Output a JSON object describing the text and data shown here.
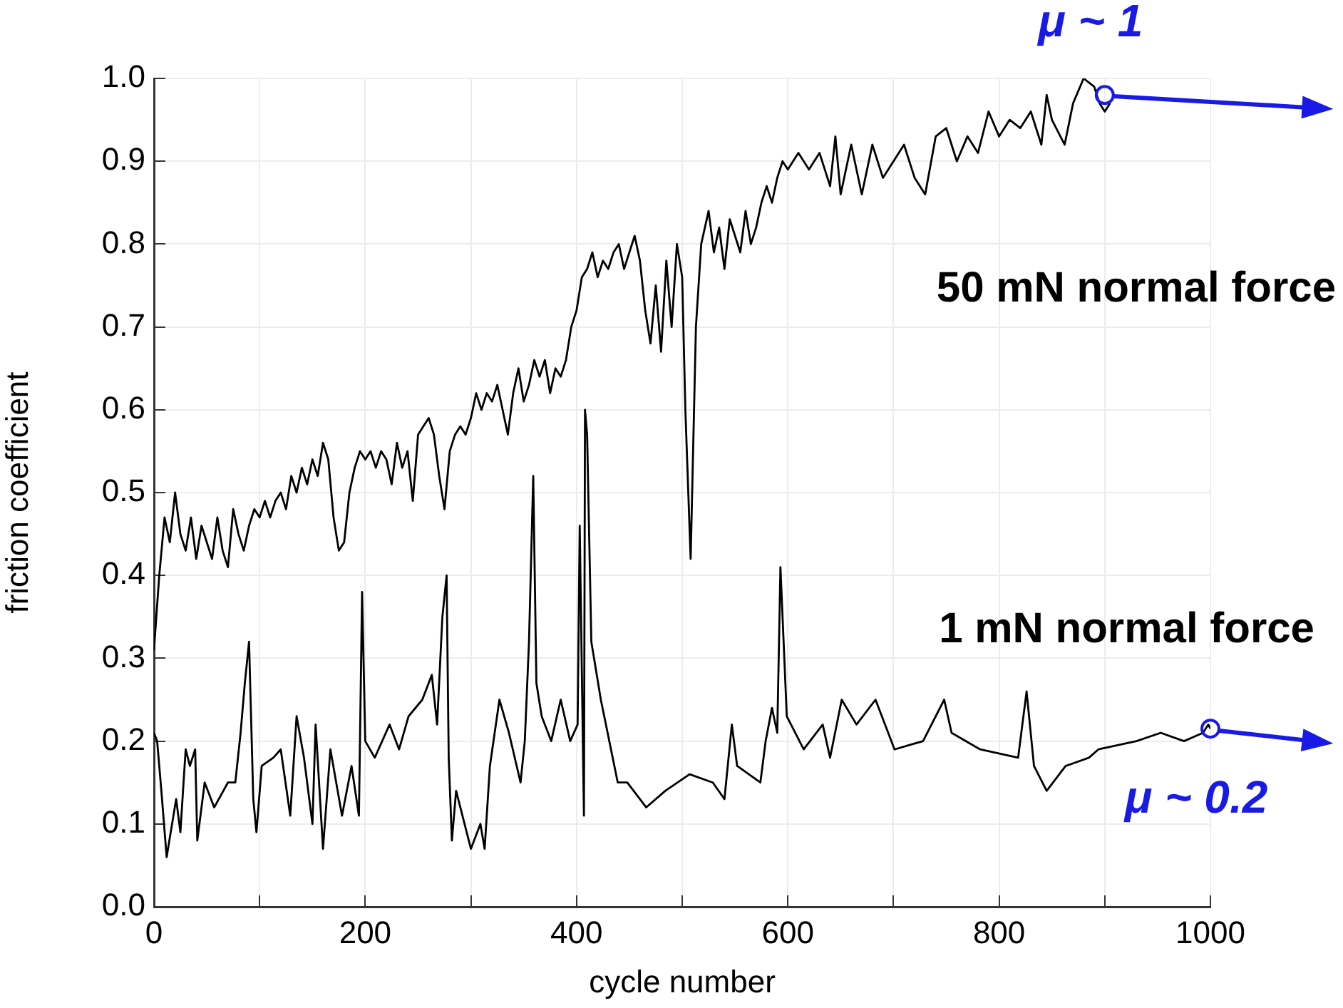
{
  "chart_data": {
    "type": "line",
    "xlabel": "cycle number",
    "ylabel": "friction coefficient",
    "xlim": [
      0,
      1000
    ],
    "ylim": [
      0,
      1
    ],
    "xticks": [
      0,
      {
        "value": 100,
        "label": null
      },
      200,
      {
        "value": 300,
        "label": null
      },
      400,
      {
        "value": 500,
        "label": null
      },
      600,
      {
        "value": 700,
        "label": null
      },
      800,
      {
        "value": 900,
        "label": null
      },
      1000
    ],
    "yticks": [
      {
        "value": 0,
        "label": "0.0"
      },
      0.1,
      0.2,
      0.3,
      0.4,
      0.5,
      0.6,
      0.7,
      0.8,
      0.9,
      {
        "value": 1,
        "label": "1.0"
      }
    ],
    "grid": true,
    "series": [
      {
        "name": "50 mN normal force",
        "color": "#000000",
        "x": [
          0,
          5,
          10,
          15,
          20,
          25,
          30,
          35,
          40,
          45,
          50,
          55,
          60,
          65,
          70,
          75,
          80,
          85,
          90,
          95,
          100,
          105,
          110,
          115,
          120,
          125,
          130,
          135,
          140,
          145,
          150,
          155,
          160,
          165,
          170,
          175,
          180,
          185,
          190,
          195,
          200,
          205,
          210,
          215,
          220,
          225,
          230,
          235,
          240,
          245,
          250,
          255,
          260,
          265,
          270,
          275,
          280,
          285,
          290,
          295,
          300,
          305,
          310,
          315,
          320,
          325,
          330,
          335,
          340,
          345,
          350,
          355,
          360,
          365,
          370,
          375,
          380,
          385,
          390,
          395,
          400,
          405,
          410,
          415,
          420,
          425,
          430,
          435,
          440,
          445,
          450,
          455,
          460,
          465,
          470,
          475,
          480,
          485,
          490,
          495,
          500,
          503,
          508,
          513,
          518,
          525,
          530,
          535,
          540,
          545,
          550,
          555,
          560,
          565,
          570,
          575,
          580,
          585,
          590,
          595,
          600,
          610,
          620,
          630,
          640,
          645,
          650,
          660,
          670,
          680,
          690,
          700,
          710,
          720,
          730,
          740,
          750,
          760,
          770,
          780,
          790,
          800,
          810,
          820,
          830,
          840,
          845,
          850,
          862,
          870,
          880,
          890,
          895,
          900,
          905
        ],
        "values": [
          0.31,
          0.4,
          0.47,
          0.44,
          0.5,
          0.45,
          0.43,
          0.47,
          0.42,
          0.46,
          0.44,
          0.42,
          0.47,
          0.43,
          0.41,
          0.48,
          0.45,
          0.43,
          0.46,
          0.48,
          0.47,
          0.49,
          0.47,
          0.49,
          0.5,
          0.48,
          0.52,
          0.5,
          0.53,
          0.51,
          0.54,
          0.52,
          0.56,
          0.54,
          0.47,
          0.43,
          0.44,
          0.5,
          0.53,
          0.55,
          0.54,
          0.55,
          0.53,
          0.55,
          0.54,
          0.51,
          0.56,
          0.53,
          0.55,
          0.49,
          0.57,
          0.58,
          0.59,
          0.57,
          0.52,
          0.48,
          0.55,
          0.57,
          0.58,
          0.57,
          0.59,
          0.62,
          0.6,
          0.62,
          0.61,
          0.63,
          0.6,
          0.57,
          0.62,
          0.65,
          0.61,
          0.63,
          0.66,
          0.64,
          0.66,
          0.62,
          0.65,
          0.64,
          0.66,
          0.7,
          0.72,
          0.76,
          0.77,
          0.79,
          0.76,
          0.78,
          0.77,
          0.79,
          0.8,
          0.77,
          0.79,
          0.81,
          0.78,
          0.72,
          0.68,
          0.75,
          0.67,
          0.78,
          0.7,
          0.8,
          0.76,
          0.6,
          0.42,
          0.7,
          0.8,
          0.84,
          0.79,
          0.82,
          0.77,
          0.83,
          0.81,
          0.79,
          0.84,
          0.8,
          0.82,
          0.85,
          0.87,
          0.85,
          0.88,
          0.9,
          0.89,
          0.91,
          0.89,
          0.91,
          0.87,
          0.93,
          0.86,
          0.92,
          0.86,
          0.92,
          0.88,
          0.9,
          0.92,
          0.88,
          0.86,
          0.93,
          0.94,
          0.9,
          0.93,
          0.91,
          0.96,
          0.93,
          0.95,
          0.94,
          0.96,
          0.92,
          0.98,
          0.95,
          0.92,
          0.97,
          1.0,
          0.99,
          0.97,
          0.96,
          0.97
        ]
      },
      {
        "name": "1 mN normal force",
        "color": "#000000",
        "x": [
          0,
          3,
          7,
          12,
          21,
          25,
          30,
          34,
          39,
          41,
          48,
          57,
          70,
          77,
          82,
          86,
          90,
          94,
          97,
          102,
          113,
          120,
          129,
          135,
          142,
          150,
          153,
          160,
          167,
          178,
          187,
          194,
          197,
          200,
          209,
          223,
          232,
          241,
          254,
          263,
          268,
          273,
          277,
          279,
          282,
          286,
          300,
          309,
          313,
          318,
          327,
          336,
          347,
          351,
          355,
          359,
          362,
          367,
          376,
          385,
          394,
          401,
          403,
          407,
          408,
          410,
          414,
          423,
          439,
          448,
          466,
          484,
          507,
          529,
          540,
          547,
          552,
          574,
          579,
          585,
          590,
          593,
          599,
          615,
          633,
          640,
          651,
          665,
          683,
          701,
          728,
          748,
          755,
          782,
          818,
          826,
          833,
          845,
          863,
          885,
          894,
          930,
          953,
          975,
          993,
          998,
          1000
        ],
        "values": [
          0.21,
          0.2,
          0.14,
          0.06,
          0.13,
          0.09,
          0.19,
          0.17,
          0.19,
          0.08,
          0.15,
          0.12,
          0.15,
          0.15,
          0.21,
          0.27,
          0.32,
          0.13,
          0.09,
          0.17,
          0.18,
          0.19,
          0.11,
          0.23,
          0.18,
          0.1,
          0.22,
          0.07,
          0.19,
          0.11,
          0.17,
          0.11,
          0.38,
          0.2,
          0.18,
          0.22,
          0.19,
          0.23,
          0.25,
          0.28,
          0.22,
          0.35,
          0.4,
          0.18,
          0.08,
          0.14,
          0.07,
          0.1,
          0.07,
          0.17,
          0.25,
          0.21,
          0.15,
          0.2,
          0.32,
          0.52,
          0.27,
          0.23,
          0.2,
          0.25,
          0.2,
          0.22,
          0.46,
          0.11,
          0.6,
          0.57,
          0.32,
          0.25,
          0.15,
          0.15,
          0.12,
          0.14,
          0.16,
          0.15,
          0.13,
          0.22,
          0.17,
          0.15,
          0.2,
          0.24,
          0.21,
          0.41,
          0.23,
          0.19,
          0.22,
          0.18,
          0.25,
          0.22,
          0.25,
          0.19,
          0.2,
          0.25,
          0.21,
          0.19,
          0.18,
          0.26,
          0.17,
          0.14,
          0.17,
          0.18,
          0.19,
          0.2,
          0.21,
          0.2,
          0.21,
          0.22,
          0.215
        ]
      }
    ],
    "annotations": [
      {
        "text": "μ ~ 1",
        "x": 900,
        "y": 0.98
      },
      {
        "text": "μ ~ 0.2",
        "x": 1000,
        "y": 0.215
      }
    ]
  }
}
